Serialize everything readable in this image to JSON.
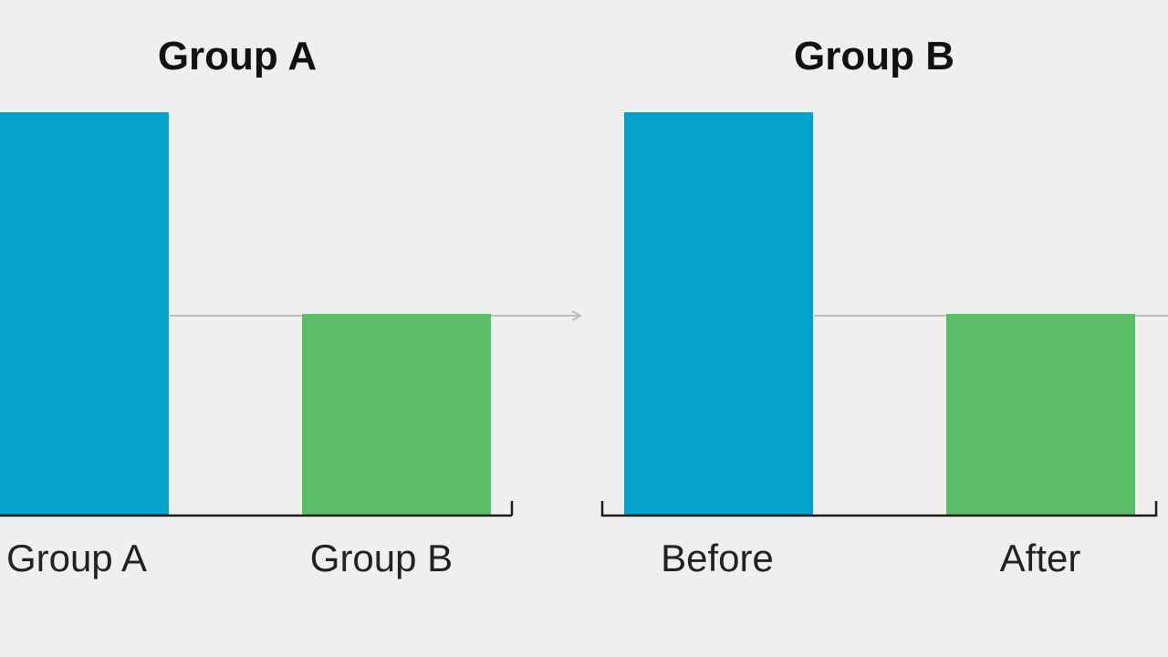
{
  "chart_data": [
    {
      "type": "bar",
      "title": "Group A",
      "categories": [
        "Group A",
        "Group B"
      ],
      "values": [
        2,
        1
      ],
      "colors": [
        "#05a2cc",
        "#5bbd68"
      ],
      "reference_line": 1,
      "grid": false,
      "legend": "none"
    },
    {
      "type": "bar",
      "title": "Group B",
      "categories": [
        "Before",
        "After"
      ],
      "values": [
        2,
        1
      ],
      "colors": [
        "#05a2cc",
        "#5bbd68"
      ],
      "reference_line": 1,
      "grid": false,
      "legend": "none"
    }
  ],
  "colors": {
    "background": "#efefef",
    "axis": "#1a1a1a",
    "reference_line": "#bdbdbd"
  }
}
